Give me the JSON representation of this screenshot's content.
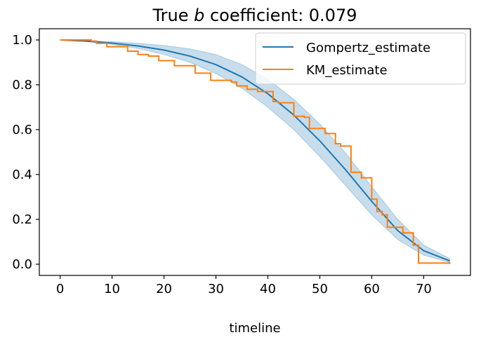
{
  "chart_data": {
    "type": "line",
    "title": {
      "prefix": "True ",
      "italic": "b",
      "suffix": " coefficient: 0.079"
    },
    "xlabel": "timeline",
    "ylabel": "",
    "xlim": [
      -4,
      79
    ],
    "ylim": [
      -0.05,
      1.05
    ],
    "xticks": [
      0,
      10,
      20,
      30,
      40,
      50,
      60,
      70
    ],
    "yticks": [
      0.0,
      0.2,
      0.4,
      0.6,
      0.8,
      1.0
    ],
    "xtick_labels": [
      "0",
      "10",
      "20",
      "30",
      "40",
      "50",
      "60",
      "70"
    ],
    "ytick_labels": [
      "0.0",
      "0.2",
      "0.4",
      "0.6",
      "0.8",
      "1.0"
    ],
    "grid": false,
    "legend_position": "top-right",
    "series": [
      {
        "name": "Gompertz_estimate",
        "color": "#1f77b4",
        "kind": "line",
        "x": [
          0,
          5,
          10,
          15,
          20,
          25,
          30,
          35,
          40,
          45,
          50,
          55,
          60,
          65,
          70,
          75
        ],
        "y": [
          1.0,
          0.995,
          0.986,
          0.973,
          0.955,
          0.928,
          0.89,
          0.835,
          0.76,
          0.665,
          0.55,
          0.42,
          0.28,
          0.15,
          0.06,
          0.015
        ],
        "ci_lower": [
          1.0,
          0.993,
          0.98,
          0.962,
          0.935,
          0.9,
          0.85,
          0.785,
          0.7,
          0.6,
          0.48,
          0.35,
          0.22,
          0.11,
          0.04,
          0.008
        ],
        "ci_upper": [
          1.0,
          0.997,
          0.992,
          0.985,
          0.975,
          0.96,
          0.935,
          0.89,
          0.825,
          0.735,
          0.625,
          0.495,
          0.345,
          0.2,
          0.085,
          0.025
        ],
        "ci_color": "#1f77b4"
      },
      {
        "name": "KM_estimate",
        "color": "#ff7f0e",
        "kind": "step",
        "x": [
          0,
          6,
          7,
          9,
          13,
          15,
          17,
          19,
          22,
          26,
          29,
          33,
          34,
          36,
          38,
          41,
          42,
          45,
          47,
          48,
          50,
          51,
          52,
          53,
          54,
          56,
          58,
          60,
          61,
          62,
          63,
          64,
          66,
          68,
          69,
          75
        ],
        "y": [
          1.0,
          0.995,
          0.985,
          0.97,
          0.95,
          0.935,
          0.928,
          0.908,
          0.885,
          0.852,
          0.82,
          0.812,
          0.795,
          0.78,
          0.77,
          0.725,
          0.72,
          0.66,
          0.655,
          0.605,
          0.605,
          0.583,
          0.583,
          0.537,
          0.527,
          0.41,
          0.385,
          0.29,
          0.235,
          0.22,
          0.165,
          0.165,
          0.14,
          0.085,
          0.005,
          0.0
        ]
      }
    ]
  }
}
